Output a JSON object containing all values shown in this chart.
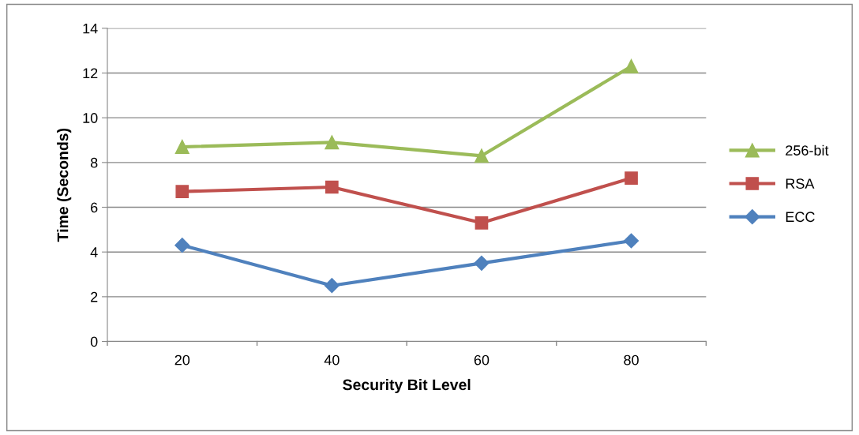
{
  "chart_data": {
    "type": "line",
    "xlabel": "Security Bit Level",
    "ylabel": "Time (Seconds)",
    "categories": [
      "20",
      "40",
      "60",
      "80"
    ],
    "series": [
      {
        "name": "256-bit",
        "color": "#9bbb59",
        "marker": "triangle",
        "values": [
          8.7,
          8.9,
          8.3,
          12.3
        ]
      },
      {
        "name": "RSA",
        "color": "#c0504d",
        "marker": "square",
        "values": [
          6.7,
          6.9,
          5.3,
          7.3
        ]
      },
      {
        "name": "ECC",
        "color": "#4f81bd",
        "marker": "diamond",
        "values": [
          4.3,
          2.5,
          3.5,
          4.5
        ]
      }
    ],
    "ylim": [
      0,
      14
    ],
    "yticks": [
      0,
      2,
      4,
      6,
      8,
      10,
      12,
      14
    ],
    "grid": "y",
    "legend": "right",
    "line_style": "solid"
  }
}
